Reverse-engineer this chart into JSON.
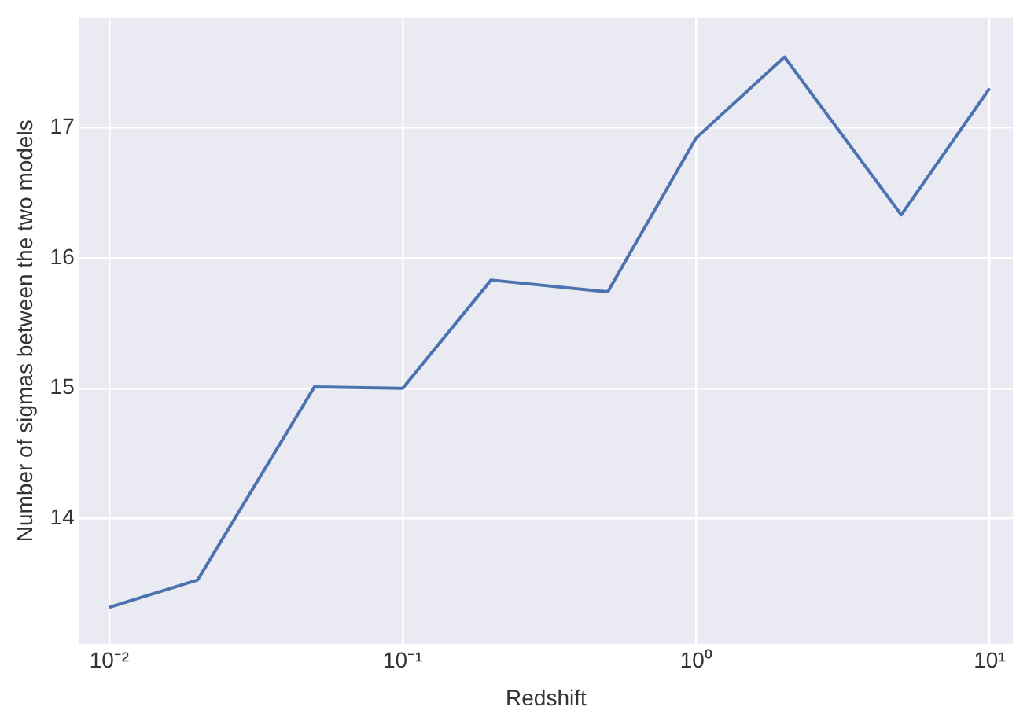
{
  "chart_data": {
    "type": "line",
    "xlabel": "Redshift",
    "ylabel": "Number of sigmas between the two models",
    "x": [
      0.01,
      0.02,
      0.05,
      0.1,
      0.2,
      0.5,
      1,
      2,
      5,
      10
    ],
    "series": [
      {
        "color": "#4c72b0",
        "values": [
          13.32,
          13.53,
          15.01,
          15.0,
          15.83,
          15.74,
          16.92,
          17.54,
          16.33,
          17.3
        ]
      }
    ],
    "log": "x",
    "xlim": [
      0.0079,
      12
    ],
    "xticks": [
      {
        "value": 0.01,
        "label": "10⁻²"
      },
      {
        "value": 0.1,
        "label": "10⁻¹"
      },
      {
        "value": 1,
        "label": "10⁰"
      },
      {
        "value": 10,
        "label": "10¹"
      }
    ],
    "ylim": [
      13.04,
      17.84
    ],
    "yticks": [
      14,
      15,
      16,
      17
    ],
    "grid": true,
    "legend": false,
    "marker": "none",
    "line_style": "solid"
  }
}
